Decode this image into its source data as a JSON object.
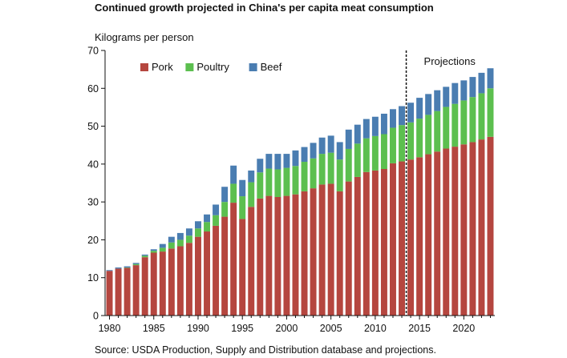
{
  "chart_data": {
    "type": "bar",
    "stacked": true,
    "title": "Continued growth projected in China's per capita meat consumption",
    "ylabel": "Kilograms per person",
    "xlabel": "",
    "source": "Source: USDA Production, Supply and Distribution database and projections.",
    "ylim": [
      0,
      70
    ],
    "yticks": [
      0,
      10,
      20,
      30,
      40,
      50,
      60,
      70
    ],
    "xticks": [
      1980,
      1985,
      1990,
      1995,
      2000,
      2005,
      2010,
      2015,
      2020
    ],
    "legend_position": "top-left",
    "annotation": {
      "label": "Projections",
      "after_year": 2013
    },
    "categories": [
      1980,
      1981,
      1982,
      1983,
      1984,
      1985,
      1986,
      1987,
      1988,
      1989,
      1990,
      1991,
      1992,
      1993,
      1994,
      1995,
      1996,
      1997,
      1998,
      1999,
      2000,
      2001,
      2002,
      2003,
      2004,
      2005,
      2006,
      2007,
      2008,
      2009,
      2010,
      2011,
      2012,
      2013,
      2014,
      2015,
      2016,
      2017,
      2018,
      2019,
      2020,
      2021,
      2022,
      2023
    ],
    "series": [
      {
        "name": "Pork",
        "color": "#b5463f",
        "values": [
          11.8,
          12.4,
          12.6,
          13.3,
          15.4,
          16.6,
          16.9,
          17.7,
          18.3,
          19.2,
          20.8,
          22.2,
          23.7,
          26.1,
          29.8,
          25.5,
          28.7,
          30.9,
          31.6,
          31.3,
          31.6,
          32.0,
          32.8,
          33.6,
          34.6,
          34.8,
          32.8,
          35.4,
          36.6,
          37.9,
          38.3,
          38.7,
          40.2,
          40.7,
          41.2,
          41.8,
          42.6,
          43.3,
          44.1,
          44.6,
          45.2,
          45.8,
          46.5,
          47.2
        ]
      },
      {
        "name": "Poultry",
        "color": "#5cbf4f",
        "values": [
          0.0,
          0.0,
          0.1,
          0.3,
          0.4,
          0.5,
          1.0,
          1.6,
          1.7,
          1.9,
          2.2,
          2.5,
          2.8,
          3.9,
          5.0,
          6.0,
          6.5,
          6.9,
          7.2,
          7.3,
          7.4,
          7.5,
          7.8,
          7.9,
          8.1,
          8.2,
          8.4,
          8.6,
          8.8,
          8.9,
          9.1,
          9.2,
          9.4,
          9.6,
          9.8,
          10.2,
          10.4,
          10.7,
          11.0,
          11.3,
          11.6,
          11.9,
          12.2,
          12.8
        ]
      },
      {
        "name": "Beef",
        "color": "#4a7db1",
        "values": [
          0.2,
          0.3,
          0.3,
          0.3,
          0.3,
          0.4,
          1.0,
          1.5,
          1.8,
          1.9,
          1.9,
          2.0,
          2.8,
          4.0,
          4.8,
          4.3,
          3.1,
          3.6,
          3.9,
          4.1,
          3.7,
          4.1,
          3.9,
          4.1,
          4.3,
          4.5,
          4.6,
          5.1,
          5.0,
          5.1,
          5.1,
          5.4,
          4.9,
          5.0,
          5.2,
          5.5,
          5.5,
          5.5,
          5.3,
          5.5,
          5.3,
          5.3,
          5.4,
          5.3
        ]
      }
    ]
  }
}
